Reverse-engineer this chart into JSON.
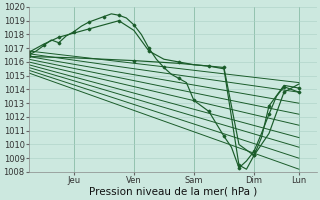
{
  "bg_color": "#cce8df",
  "grid_color": "#aacfc5",
  "line_color": "#1a5c2a",
  "ylim": [
    1008,
    1020
  ],
  "yticks": [
    1008,
    1009,
    1010,
    1011,
    1012,
    1013,
    1014,
    1015,
    1016,
    1017,
    1018,
    1019,
    1020
  ],
  "xlabel": "Pression niveau de la mer( hPa )",
  "xlabel_fontsize": 7.5,
  "tick_fontsize": 6.0,
  "day_labels": [
    "Jeu",
    "Ven",
    "Sam",
    "Dim",
    "Lun"
  ],
  "xlim": [
    0,
    115
  ],
  "day_tick_positions": [
    18,
    42,
    66,
    90,
    108
  ],
  "day_vline_positions": [
    18,
    42,
    66,
    90,
    108
  ],
  "ensemble_starts": [
    1016.8,
    1016.6,
    1016.4,
    1016.2,
    1016.0,
    1015.8,
    1015.6,
    1015.4,
    1015.2
  ],
  "ensemble_ends_x": [
    108,
    108,
    108,
    108,
    108,
    108,
    108,
    108,
    108
  ],
  "ensemble_ends_y": [
    1014.5,
    1013.8,
    1013.0,
    1012.2,
    1011.4,
    1010.5,
    1009.8,
    1009.0,
    1008.2
  ],
  "main_t": [
    0,
    3,
    6,
    9,
    12,
    15,
    18,
    21,
    24,
    27,
    30,
    33,
    36,
    39,
    42,
    45,
    48,
    51,
    54,
    57,
    60,
    63,
    66,
    69,
    72,
    75,
    78,
    81,
    84,
    87,
    90,
    93,
    96,
    99,
    102,
    105,
    108
  ],
  "main_p": [
    1016.5,
    1016.8,
    1017.2,
    1017.6,
    1017.4,
    1017.9,
    1018.2,
    1018.6,
    1018.9,
    1019.1,
    1019.3,
    1019.5,
    1019.4,
    1019.2,
    1018.7,
    1018.0,
    1017.0,
    1016.2,
    1015.6,
    1015.1,
    1014.8,
    1014.5,
    1013.2,
    1012.8,
    1012.4,
    1011.5,
    1010.6,
    1009.8,
    1008.3,
    1008.8,
    1009.5,
    1010.8,
    1012.2,
    1013.5,
    1014.2,
    1014.0,
    1013.8
  ],
  "line2_t": [
    0,
    6,
    12,
    18,
    24,
    30,
    36,
    42,
    48,
    54,
    60,
    66,
    72,
    78,
    84,
    87,
    90,
    93,
    96,
    102,
    108
  ],
  "line2_p": [
    1016.7,
    1017.3,
    1017.8,
    1018.1,
    1018.4,
    1018.7,
    1019.0,
    1018.3,
    1016.8,
    1016.2,
    1016.0,
    1015.8,
    1015.7,
    1015.5,
    1008.5,
    1008.2,
    1009.2,
    1010.5,
    1012.8,
    1014.3,
    1014.1
  ],
  "line3_t": [
    0,
    18,
    42,
    60,
    78,
    84,
    90,
    96,
    102,
    108
  ],
  "line3_p": [
    1016.4,
    1016.3,
    1016.1,
    1015.9,
    1015.6,
    1010.0,
    1009.2,
    1010.8,
    1013.8,
    1014.4
  ]
}
